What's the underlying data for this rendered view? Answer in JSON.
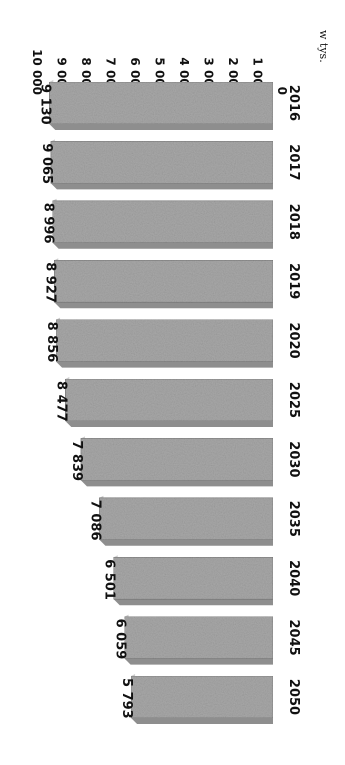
{
  "chart_data": {
    "type": "bar",
    "orientation": "rotated-90-clockwise",
    "unit_label": "w tys.",
    "categories": [
      "2016",
      "2017",
      "2018",
      "2019",
      "2020",
      "2025",
      "2030",
      "2035",
      "2040",
      "2045",
      "2050"
    ],
    "values": [
      9130,
      9065,
      8996,
      8927,
      8856,
      8477,
      7839,
      7086,
      6501,
      6059,
      5793
    ],
    "data_labels": [
      "9 130",
      "9 065",
      "8 996",
      "8 927",
      "8 856",
      "8 477",
      "7 839",
      "7 086",
      "6 501",
      "6 059",
      "5 793"
    ],
    "value_ticks": [
      "0",
      "1 000",
      "2 000",
      "3 000",
      "4 000",
      "5 000",
      "6 000",
      "7 000",
      "8 000",
      "9 000",
      "10 000"
    ],
    "ylim": [
      0,
      10000
    ],
    "grid": false,
    "legend": "none"
  },
  "colors": {
    "bar": "#a9a9a9",
    "bar_side": "#8e8e8e",
    "bar_top": "#cdcdcd",
    "text": "#111111"
  }
}
